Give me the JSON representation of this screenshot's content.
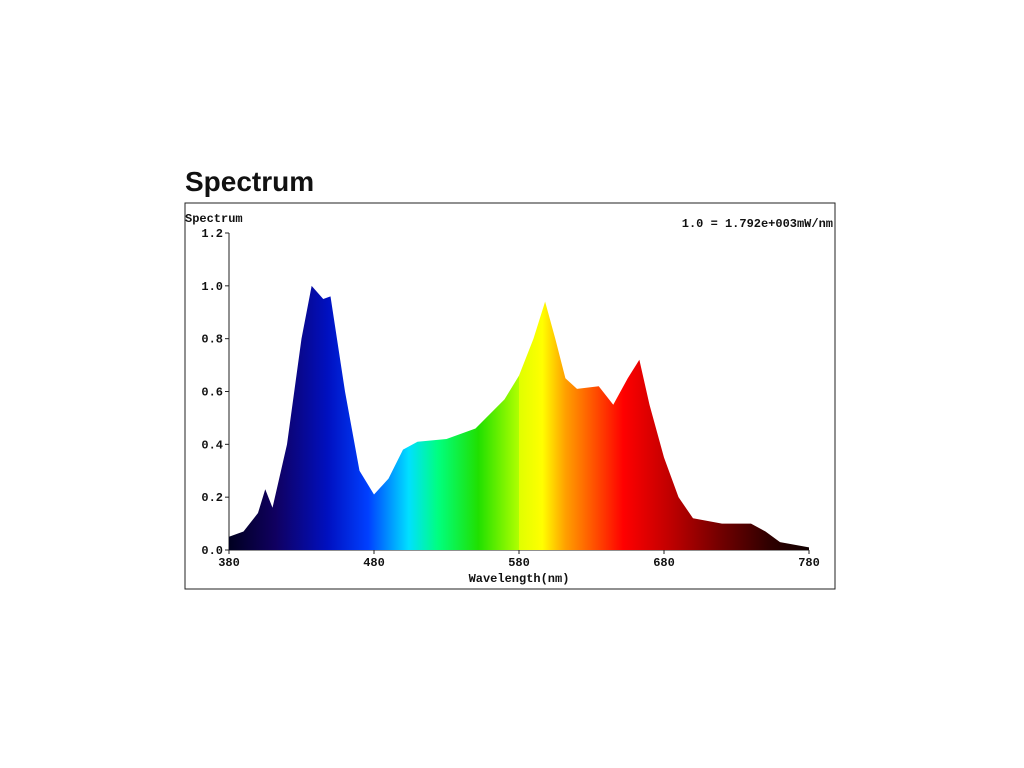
{
  "page_title": "Spectrum",
  "chart_data": {
    "type": "area",
    "title": "Spectrum",
    "annotation": "1.0 = 1.792e+003mW/nm",
    "x_label": "Wavelength(nm)",
    "x": [
      380,
      390,
      400,
      405,
      410,
      420,
      430,
      437,
      445,
      450,
      460,
      470,
      480,
      490,
      500,
      510,
      530,
      550,
      570,
      580,
      590,
      598,
      605,
      612,
      620,
      635,
      645,
      655,
      663,
      670,
      680,
      690,
      700,
      720,
      740,
      750,
      760,
      780
    ],
    "values": [
      0.05,
      0.07,
      0.14,
      0.23,
      0.16,
      0.4,
      0.8,
      1.0,
      0.95,
      0.96,
      0.6,
      0.3,
      0.21,
      0.27,
      0.38,
      0.41,
      0.42,
      0.46,
      0.57,
      0.66,
      0.8,
      0.94,
      0.8,
      0.65,
      0.61,
      0.62,
      0.55,
      0.65,
      0.72,
      0.55,
      0.35,
      0.2,
      0.12,
      0.1,
      0.1,
      0.07,
      0.03,
      0.01
    ],
    "xlim": [
      380,
      780
    ],
    "ylim": [
      0,
      1.2
    ],
    "xticks": [
      380,
      480,
      580,
      680,
      780
    ],
    "yticks": [
      {
        "value": 0,
        "label": "0.0"
      },
      0.2,
      0.4,
      0.6,
      0.8,
      {
        "value": 1,
        "label": "1.0"
      },
      1.2
    ]
  }
}
